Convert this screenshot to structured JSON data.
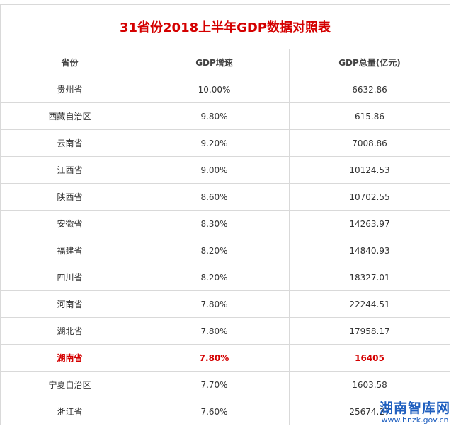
{
  "table": {
    "title": "31省份2018上半年GDP数据对照表",
    "headers": [
      "省份",
      "GDP增速",
      "GDP总量(亿元)"
    ],
    "rows": [
      {
        "province": "贵州省",
        "growth": "10.00%",
        "total": "6632.86",
        "highlight": false
      },
      {
        "province": "西藏自治区",
        "growth": "9.80%",
        "total": "615.86",
        "highlight": false
      },
      {
        "province": "云南省",
        "growth": "9.20%",
        "total": "7008.86",
        "highlight": false
      },
      {
        "province": "江西省",
        "growth": "9.00%",
        "total": "10124.53",
        "highlight": false
      },
      {
        "province": "陕西省",
        "growth": "8.60%",
        "total": "10702.55",
        "highlight": false
      },
      {
        "province": "安徽省",
        "growth": "8.30%",
        "total": "14263.97",
        "highlight": false
      },
      {
        "province": "福建省",
        "growth": "8.20%",
        "total": "14840.93",
        "highlight": false
      },
      {
        "province": "四川省",
        "growth": "8.20%",
        "total": "18327.01",
        "highlight": false
      },
      {
        "province": "河南省",
        "growth": "7.80%",
        "total": "22244.51",
        "highlight": false
      },
      {
        "province": "湖北省",
        "growth": "7.80%",
        "total": "17958.17",
        "highlight": false
      },
      {
        "province": "湖南省",
        "growth": "7.80%",
        "total": "16405",
        "highlight": true
      },
      {
        "province": "宁夏自治区",
        "growth": "7.70%",
        "total": "1603.58",
        "highlight": false
      },
      {
        "province": "浙江省",
        "growth": "7.60%",
        "total": "25674.27",
        "highlight": false
      }
    ]
  },
  "watermark": {
    "title": "湖南智库网",
    "url": "www.hnzk.gov.cn"
  },
  "colors": {
    "title": "#d40000",
    "highlight": "#d40000",
    "border": "#d9d9d9",
    "watermark": "#1f5fbf"
  }
}
